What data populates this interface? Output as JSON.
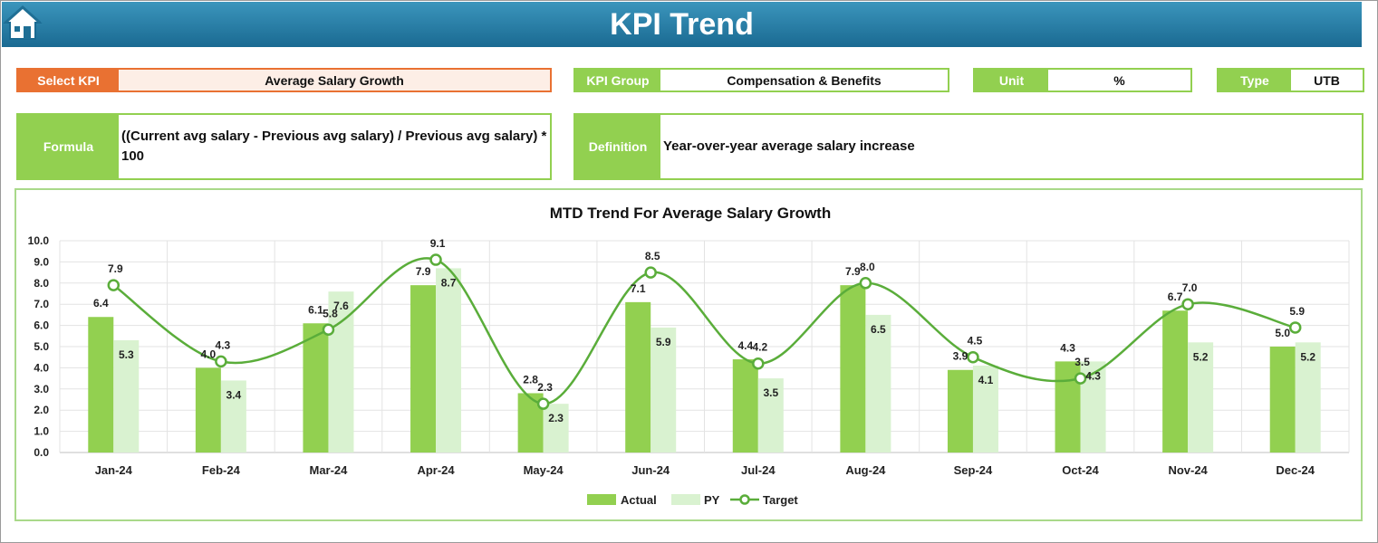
{
  "header": {
    "title": "KPI Trend",
    "home_icon": "home-icon"
  },
  "kpi_selector": {
    "label": "Select KPI",
    "value": "Average Salary Growth"
  },
  "kpi_group": {
    "label": "KPI Group",
    "value": "Compensation & Benefits"
  },
  "unit": {
    "label": "Unit",
    "value": "%"
  },
  "type": {
    "label": "Type",
    "value": "UTB"
  },
  "formula": {
    "label": "Formula",
    "value": "((Current avg salary - Previous avg salary) / Previous avg salary) * 100"
  },
  "definition": {
    "label": "Definition",
    "value": "Year-over-year average salary increase"
  },
  "colors": {
    "banner": "#1f73a0",
    "green": "#92d050",
    "orange": "#e97132",
    "py": "#d9f2d0",
    "target": "#5aad3a"
  },
  "chart_data": {
    "type": "bar",
    "title": "MTD Trend For Average Salary Growth",
    "categories": [
      "Jan-24",
      "Feb-24",
      "Mar-24",
      "Apr-24",
      "May-24",
      "Jun-24",
      "Jul-24",
      "Aug-24",
      "Sep-24",
      "Oct-24",
      "Nov-24",
      "Dec-24"
    ],
    "series": [
      {
        "name": "Actual",
        "kind": "bar",
        "color": "#92d050",
        "values": [
          6.4,
          4.0,
          6.1,
          7.9,
          2.8,
          7.1,
          4.4,
          7.9,
          3.9,
          4.3,
          6.7,
          5.0
        ]
      },
      {
        "name": "PY",
        "kind": "bar",
        "color": "#d9f2d0",
        "values": [
          5.3,
          3.4,
          7.6,
          8.7,
          2.3,
          5.9,
          3.5,
          6.5,
          4.1,
          4.3,
          5.2,
          5.2
        ]
      },
      {
        "name": "Target",
        "kind": "line",
        "color": "#5aad3a",
        "values": [
          7.9,
          4.3,
          5.8,
          9.1,
          2.3,
          8.5,
          4.2,
          8.0,
          4.5,
          3.5,
          7.0,
          5.9
        ]
      }
    ],
    "ylim": [
      0,
      10
    ],
    "yticks": [
      "0.0",
      "1.0",
      "2.0",
      "3.0",
      "4.0",
      "5.0",
      "6.0",
      "7.0",
      "8.0",
      "9.0",
      "10.0"
    ],
    "grid": true,
    "legend": "bottom"
  }
}
